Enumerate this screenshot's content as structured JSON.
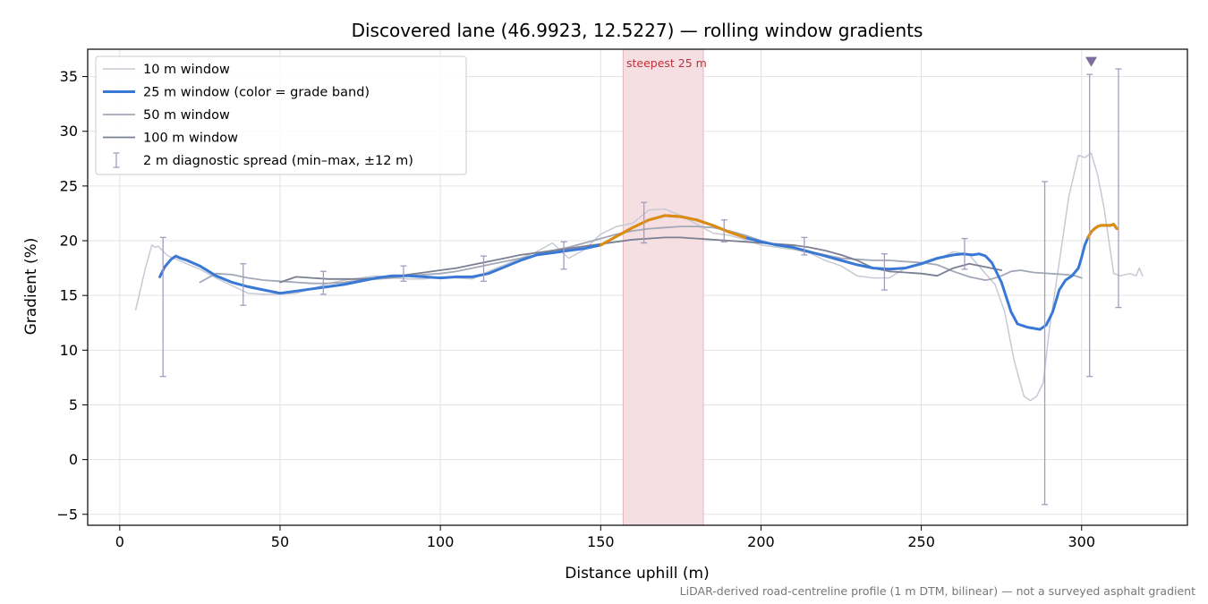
{
  "chart_data": {
    "type": "line",
    "title": "Discovered lane (46.9923, 12.5227) — rolling window gradients",
    "xlabel": "Distance uphill (m)",
    "ylabel": "Gradient (%)",
    "xlim": [
      -10,
      333
    ],
    "ylim": [
      -6,
      37.5
    ],
    "xticks": [
      0,
      50,
      100,
      150,
      200,
      250,
      300
    ],
    "yticks": [
      -5,
      0,
      5,
      10,
      15,
      20,
      25,
      30,
      35
    ],
    "grid": true,
    "legend_position": "top-left",
    "footnote": "LiDAR-derived road-centreline profile (1 m DTM, bilinear) — not a surveyed asphalt gradient",
    "highlight_band": {
      "x": [
        157,
        182
      ],
      "label": "steepest 25 m",
      "color": "#e8a9b0"
    },
    "marker": {
      "x": 303,
      "y": 36.3,
      "shape": "triangle-down",
      "color": "#7e6d9c"
    },
    "colors": {
      "blue": "#3a78d6",
      "orange": "#e08c0b",
      "w10": "#c6cad4",
      "w50": "#a3a8b8",
      "w100": "#7a7f92",
      "spread": "#a49bbf"
    },
    "series": [
      {
        "name": "10 m window",
        "color": "#c6cad4",
        "width": 1.5,
        "x": [
          5,
          8,
          10,
          11,
          12,
          13,
          15,
          17,
          20,
          25,
          30,
          35,
          40,
          45,
          50,
          55,
          60,
          65,
          70,
          75,
          80,
          85,
          90,
          95,
          100,
          105,
          110,
          115,
          120,
          125,
          130,
          135,
          140,
          145,
          150,
          155,
          160,
          165,
          170,
          175,
          180,
          185,
          190,
          195,
          200,
          205,
          210,
          215,
          220,
          225,
          230,
          235,
          240,
          245,
          250,
          255,
          260,
          265,
          270,
          273,
          276,
          279,
          282,
          284,
          286,
          288,
          290,
          293,
          296,
          299,
          301,
          303,
          305,
          307,
          310,
          312,
          315,
          317,
          318,
          319
        ],
        "y": [
          13.7,
          17.5,
          19.6,
          19.4,
          19.5,
          19.2,
          18.6,
          18.4,
          18.0,
          17.4,
          16.6,
          15.9,
          15.2,
          15.1,
          15.1,
          15.2,
          15.6,
          16.1,
          16.4,
          16.6,
          16.8,
          16.6,
          16.5,
          16.5,
          16.7,
          16.6,
          16.5,
          17.2,
          17.8,
          18.4,
          19.0,
          19.8,
          18.4,
          19.2,
          20.6,
          21.3,
          21.6,
          22.8,
          22.9,
          22.3,
          21.5,
          20.7,
          20.5,
          20.1,
          19.6,
          19.4,
          19.2,
          18.9,
          18.2,
          17.7,
          16.8,
          16.6,
          16.6,
          17.5,
          17.8,
          18.3,
          19.0,
          18.7,
          17.0,
          16.0,
          13.5,
          9.0,
          5.8,
          5.4,
          5.8,
          7.0,
          12.0,
          18.0,
          24.0,
          27.8,
          27.6,
          28.0,
          26.0,
          23.0,
          17.0,
          16.8,
          17.0,
          16.8,
          17.5,
          16.8
        ]
      },
      {
        "name": "25 m window (color = grade band)",
        "color": "#3a78d6",
        "width": 3,
        "x": [
          12.5,
          14,
          16,
          17.5,
          19,
          21,
          25,
          30,
          35,
          40,
          45,
          50,
          55,
          60,
          65,
          70,
          75,
          80,
          85,
          90,
          95,
          100,
          105,
          110,
          115,
          120,
          125,
          130,
          135,
          140,
          145,
          150,
          155,
          160,
          165,
          170,
          175,
          180,
          185,
          190,
          195,
          200,
          205,
          210,
          215,
          220,
          225,
          230,
          235,
          240,
          245,
          250,
          255,
          260,
          263,
          266,
          268,
          270,
          272,
          275,
          278,
          280,
          283,
          287,
          289,
          291,
          293,
          295,
          297,
          299,
          300,
          301,
          302,
          303,
          304,
          305,
          306,
          307,
          308,
          309,
          310,
          311
        ],
        "y": [
          16.7,
          17.6,
          18.3,
          18.6,
          18.4,
          18.2,
          17.7,
          16.8,
          16.2,
          15.8,
          15.5,
          15.2,
          15.4,
          15.6,
          15.8,
          16.0,
          16.3,
          16.6,
          16.8,
          16.8,
          16.7,
          16.6,
          16.7,
          16.7,
          17.0,
          17.6,
          18.2,
          18.7,
          18.9,
          19.1,
          19.3,
          19.6,
          20.4,
          21.2,
          21.9,
          22.3,
          22.2,
          21.9,
          21.4,
          20.8,
          20.3,
          19.9,
          19.6,
          19.4,
          19.0,
          18.6,
          18.2,
          17.8,
          17.5,
          17.4,
          17.5,
          17.9,
          18.4,
          18.7,
          18.8,
          18.7,
          18.8,
          18.6,
          18.0,
          16.2,
          13.5,
          12.4,
          12.1,
          11.9,
          12.3,
          13.5,
          15.5,
          16.4,
          16.8,
          17.5,
          18.5,
          19.6,
          20.3,
          20.8,
          21.1,
          21.3,
          21.4,
          21.4,
          21.4,
          21.4,
          21.5,
          21.1
        ],
        "bands": [
          {
            "color": "#e08c0b",
            "x": [
              150,
              197
            ]
          },
          {
            "color": "#e08c0b",
            "x": [
              302,
              311
            ]
          }
        ]
      },
      {
        "name": "50 m window",
        "color": "#a3a8b8",
        "width": 1.8,
        "x": [
          25,
          30,
          35,
          40,
          45,
          50,
          55,
          60,
          65,
          70,
          75,
          80,
          85,
          90,
          95,
          100,
          105,
          110,
          115,
          120,
          125,
          130,
          135,
          140,
          145,
          150,
          155,
          160,
          165,
          170,
          175,
          180,
          185,
          190,
          195,
          200,
          205,
          210,
          215,
          220,
          225,
          230,
          235,
          240,
          245,
          250,
          255,
          260,
          265,
          270,
          272,
          275,
          278,
          281,
          285,
          290,
          295,
          298,
          300
        ],
        "y": [
          16.2,
          17.0,
          16.9,
          16.6,
          16.4,
          16.3,
          16.2,
          16.1,
          16.1,
          16.2,
          16.4,
          16.5,
          16.6,
          16.8,
          16.9,
          17.0,
          17.2,
          17.5,
          17.8,
          18.1,
          18.4,
          18.7,
          19.1,
          19.4,
          19.8,
          20.2,
          20.6,
          20.9,
          21.1,
          21.2,
          21.3,
          21.3,
          21.2,
          20.9,
          20.5,
          20.0,
          19.6,
          19.3,
          19.0,
          18.7,
          18.4,
          18.3,
          18.2,
          18.2,
          18.1,
          18.0,
          17.8,
          17.2,
          16.7,
          16.4,
          16.5,
          16.8,
          17.2,
          17.3,
          17.1,
          17.0,
          16.9,
          16.8,
          16.6
        ]
      },
      {
        "name": "100 m window",
        "color": "#7a7f92",
        "width": 1.8,
        "x": [
          50,
          55,
          60,
          65,
          70,
          75,
          80,
          85,
          90,
          95,
          100,
          105,
          110,
          115,
          120,
          125,
          130,
          135,
          140,
          145,
          150,
          155,
          160,
          165,
          170,
          175,
          180,
          185,
          190,
          195,
          200,
          205,
          210,
          215,
          220,
          225,
          230,
          235,
          240,
          245,
          250,
          255,
          260,
          265,
          270,
          275
        ],
        "y": [
          16.2,
          16.7,
          16.6,
          16.5,
          16.5,
          16.5,
          16.6,
          16.7,
          16.9,
          17.1,
          17.3,
          17.5,
          17.8,
          18.1,
          18.4,
          18.7,
          18.9,
          19.1,
          19.3,
          19.5,
          19.7,
          19.9,
          20.1,
          20.2,
          20.3,
          20.3,
          20.2,
          20.1,
          20.0,
          19.9,
          19.8,
          19.7,
          19.6,
          19.4,
          19.1,
          18.7,
          18.2,
          17.5,
          17.2,
          17.1,
          17.0,
          16.8,
          17.5,
          17.9,
          17.6,
          17.3
        ]
      }
    ],
    "spread": {
      "name": "2 m diagnostic spread (min–max, ±12 m)",
      "color": "#a49bbf",
      "points": [
        {
          "x": 13.5,
          "min": 7.6,
          "max": 20.3
        },
        {
          "x": 38.5,
          "min": 14.1,
          "max": 17.9
        },
        {
          "x": 63.5,
          "min": 15.1,
          "max": 17.2
        },
        {
          "x": 88.5,
          "min": 16.3,
          "max": 17.7
        },
        {
          "x": 113.5,
          "min": 16.3,
          "max": 18.6
        },
        {
          "x": 138.5,
          "min": 17.4,
          "max": 19.9
        },
        {
          "x": 163.5,
          "min": 19.8,
          "max": 23.5
        },
        {
          "x": 188.5,
          "min": 19.9,
          "max": 21.9
        },
        {
          "x": 213.5,
          "min": 18.7,
          "max": 20.3
        },
        {
          "x": 238.5,
          "min": 15.5,
          "max": 18.8
        },
        {
          "x": 263.5,
          "min": 17.4,
          "max": 20.2
        },
        {
          "x": 288.5,
          "min": -4.1,
          "max": 25.4
        },
        {
          "x": 302.5,
          "min": 7.6,
          "max": 35.2
        },
        {
          "x": 311.5,
          "min": 13.9,
          "max": 35.7
        }
      ]
    }
  }
}
